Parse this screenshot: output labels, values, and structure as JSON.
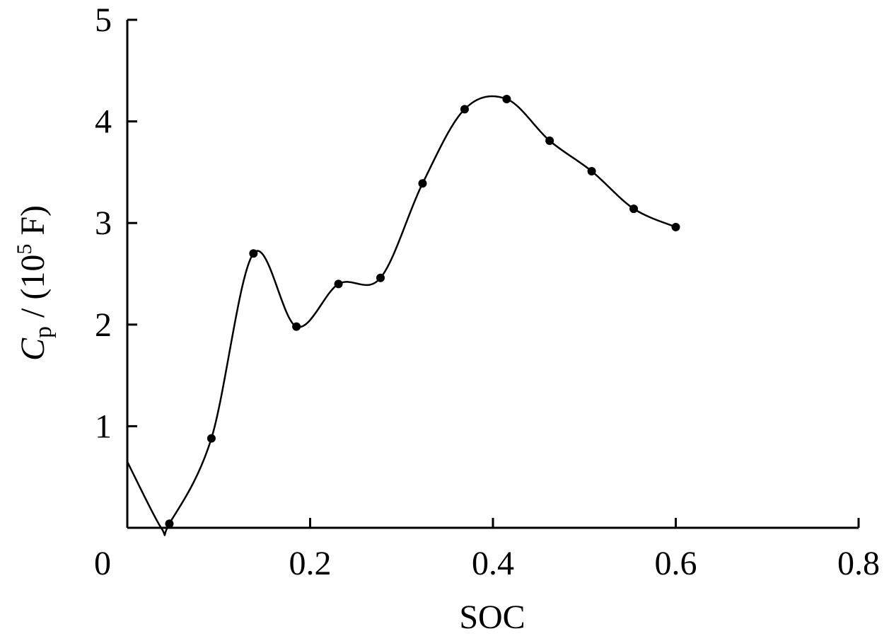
{
  "chart_data": {
    "type": "line",
    "title": "",
    "xlabel": "SOC",
    "ylabel": {
      "symbol": "C",
      "subscript": "p",
      "unit_prefix": " / (10",
      "exponent": "5",
      "unit_suffix": " F)"
    },
    "xlim": [
      0,
      0.8
    ],
    "ylim": [
      0,
      5
    ],
    "x_ticks": [
      0,
      0.2,
      0.4,
      0.6,
      0.8
    ],
    "x_tick_labels": [
      "0",
      "0.2",
      "0.4",
      "0.6",
      "0.8"
    ],
    "y_ticks": [
      1,
      2,
      3,
      4,
      5
    ],
    "y_tick_labels": [
      "1",
      "2",
      "3",
      "4",
      "5"
    ],
    "grid": false,
    "legend": "none",
    "line_color": "#000000",
    "curve_start": [
      0.0,
      0.65
    ],
    "curve_min": [
      0.037,
      0.0
    ],
    "series": [
      {
        "x": [
          0.046,
          0.092,
          0.138,
          0.185,
          0.231,
          0.277,
          0.323,
          0.369,
          0.415,
          0.462,
          0.508,
          0.554,
          0.6
        ],
        "y": [
          0.04,
          0.88,
          2.7,
          1.98,
          2.4,
          2.46,
          3.39,
          4.12,
          4.22,
          3.81,
          3.51,
          3.14,
          2.96
        ]
      }
    ]
  }
}
